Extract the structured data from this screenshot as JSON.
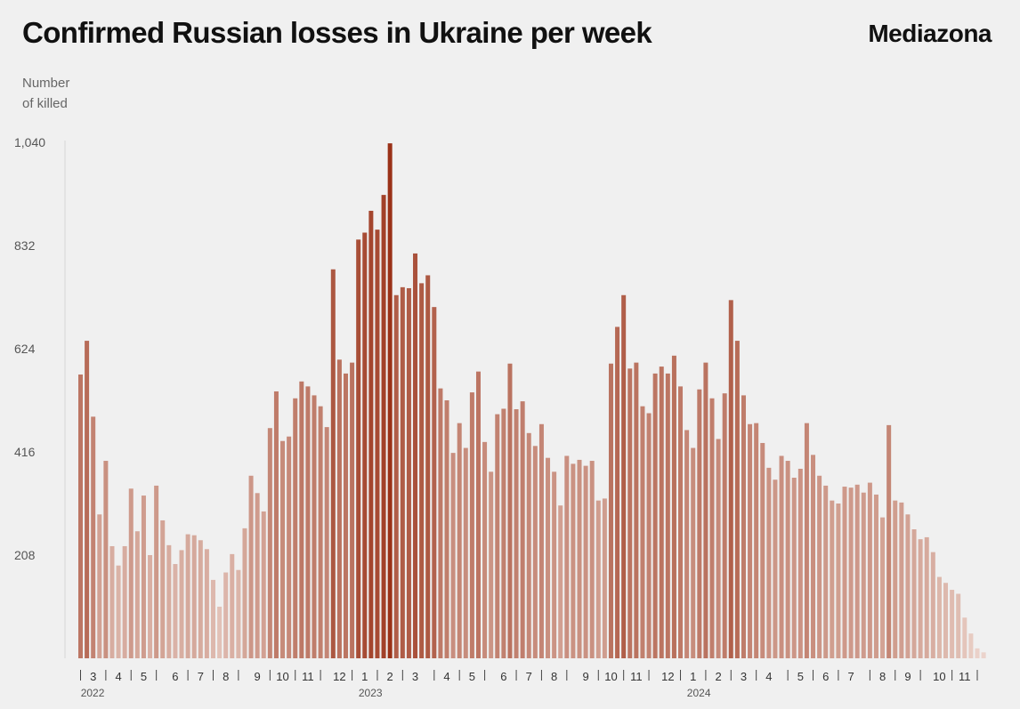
{
  "title": "Confirmed Russian losses in Ukraine per week",
  "brand": "Mediazona",
  "chart_data": {
    "type": "bar",
    "title": "Confirmed Russian losses in Ukraine per week",
    "ylabel": "Number of killed",
    "ylabel_lines": [
      "Number",
      "of killed"
    ],
    "xlabel": "",
    "ylim": [
      0,
      1040
    ],
    "yticks": [
      {
        "value": 208,
        "label": "208"
      },
      {
        "value": 416,
        "label": "416"
      },
      {
        "value": 624,
        "label": "624"
      },
      {
        "value": 832,
        "label": "832"
      },
      {
        "value": 1040,
        "label": "1,040"
      }
    ],
    "month_labels": [
      {
        "week": 3,
        "label": "3"
      },
      {
        "week": 7,
        "label": "4"
      },
      {
        "week": 11,
        "label": "5"
      },
      {
        "week": 16,
        "label": "6"
      },
      {
        "week": 20,
        "label": "7"
      },
      {
        "week": 24,
        "label": "8"
      },
      {
        "week": 29,
        "label": "9"
      },
      {
        "week": 33,
        "label": "10"
      },
      {
        "week": 37,
        "label": "11"
      },
      {
        "week": 42,
        "label": "12"
      },
      {
        "week": 46,
        "label": "1"
      },
      {
        "week": 50,
        "label": "2"
      },
      {
        "week": 54,
        "label": "3"
      },
      {
        "week": 59,
        "label": "4"
      },
      {
        "week": 63,
        "label": "5"
      },
      {
        "week": 68,
        "label": "6"
      },
      {
        "week": 72,
        "label": "7"
      },
      {
        "week": 76,
        "label": "8"
      },
      {
        "week": 81,
        "label": "9"
      },
      {
        "week": 85,
        "label": "10"
      },
      {
        "week": 89,
        "label": "11"
      },
      {
        "week": 94,
        "label": "12"
      },
      {
        "week": 98,
        "label": "1"
      },
      {
        "week": 102,
        "label": "2"
      },
      {
        "week": 106,
        "label": "3"
      },
      {
        "week": 110,
        "label": "4"
      },
      {
        "week": 115,
        "label": "5"
      },
      {
        "week": 119,
        "label": "6"
      },
      {
        "week": 123,
        "label": "7"
      },
      {
        "week": 128,
        "label": "8"
      },
      {
        "week": 132,
        "label": "9"
      },
      {
        "week": 137,
        "label": "10"
      },
      {
        "week": 141,
        "label": "11"
      }
    ],
    "separator_weeks": [
      1,
      5,
      9,
      13,
      18,
      22,
      26,
      31,
      35,
      39,
      44,
      48,
      52,
      57,
      61,
      65,
      70,
      74,
      78,
      83,
      87,
      91,
      96,
      100,
      104,
      108,
      113,
      117,
      121,
      126,
      130,
      134,
      139,
      143
    ],
    "year_labels": [
      {
        "week": 3,
        "label": "2022"
      },
      {
        "week": 47,
        "label": "2023"
      },
      {
        "week": 99,
        "label": "2024"
      }
    ],
    "values": [
      572,
      640,
      487,
      290,
      398,
      226,
      187,
      226,
      342,
      256,
      328,
      208,
      348,
      278,
      228,
      190,
      218,
      250,
      248,
      238,
      220,
      158,
      104,
      173,
      210,
      178,
      262,
      368,
      333,
      296,
      464,
      538,
      438,
      447,
      524,
      558,
      548,
      530,
      508,
      466,
      784,
      602,
      574,
      596,
      844,
      858,
      902,
      864,
      934,
      1038,
      732,
      748,
      746,
      816,
      756,
      772,
      708,
      544,
      520,
      414,
      474,
      424,
      536,
      578,
      436,
      376,
      492,
      503,
      594,
      502,
      518,
      454,
      428,
      472,
      404,
      376,
      308,
      408,
      392,
      400,
      388,
      398,
      318,
      322,
      594,
      668,
      732,
      584,
      596,
      508,
      494,
      574,
      588,
      574,
      610,
      548,
      460,
      424,
      542,
      596,
      524,
      442,
      534,
      722,
      640,
      530,
      472,
      474,
      434,
      384,
      360,
      408,
      398,
      364,
      382,
      474,
      410,
      368,
      348,
      318,
      312,
      346,
      344,
      350,
      334,
      354,
      330,
      284,
      470,
      318,
      314,
      290,
      260,
      240,
      244,
      214,
      164,
      152,
      138,
      130,
      82,
      50,
      20,
      12
    ]
  }
}
